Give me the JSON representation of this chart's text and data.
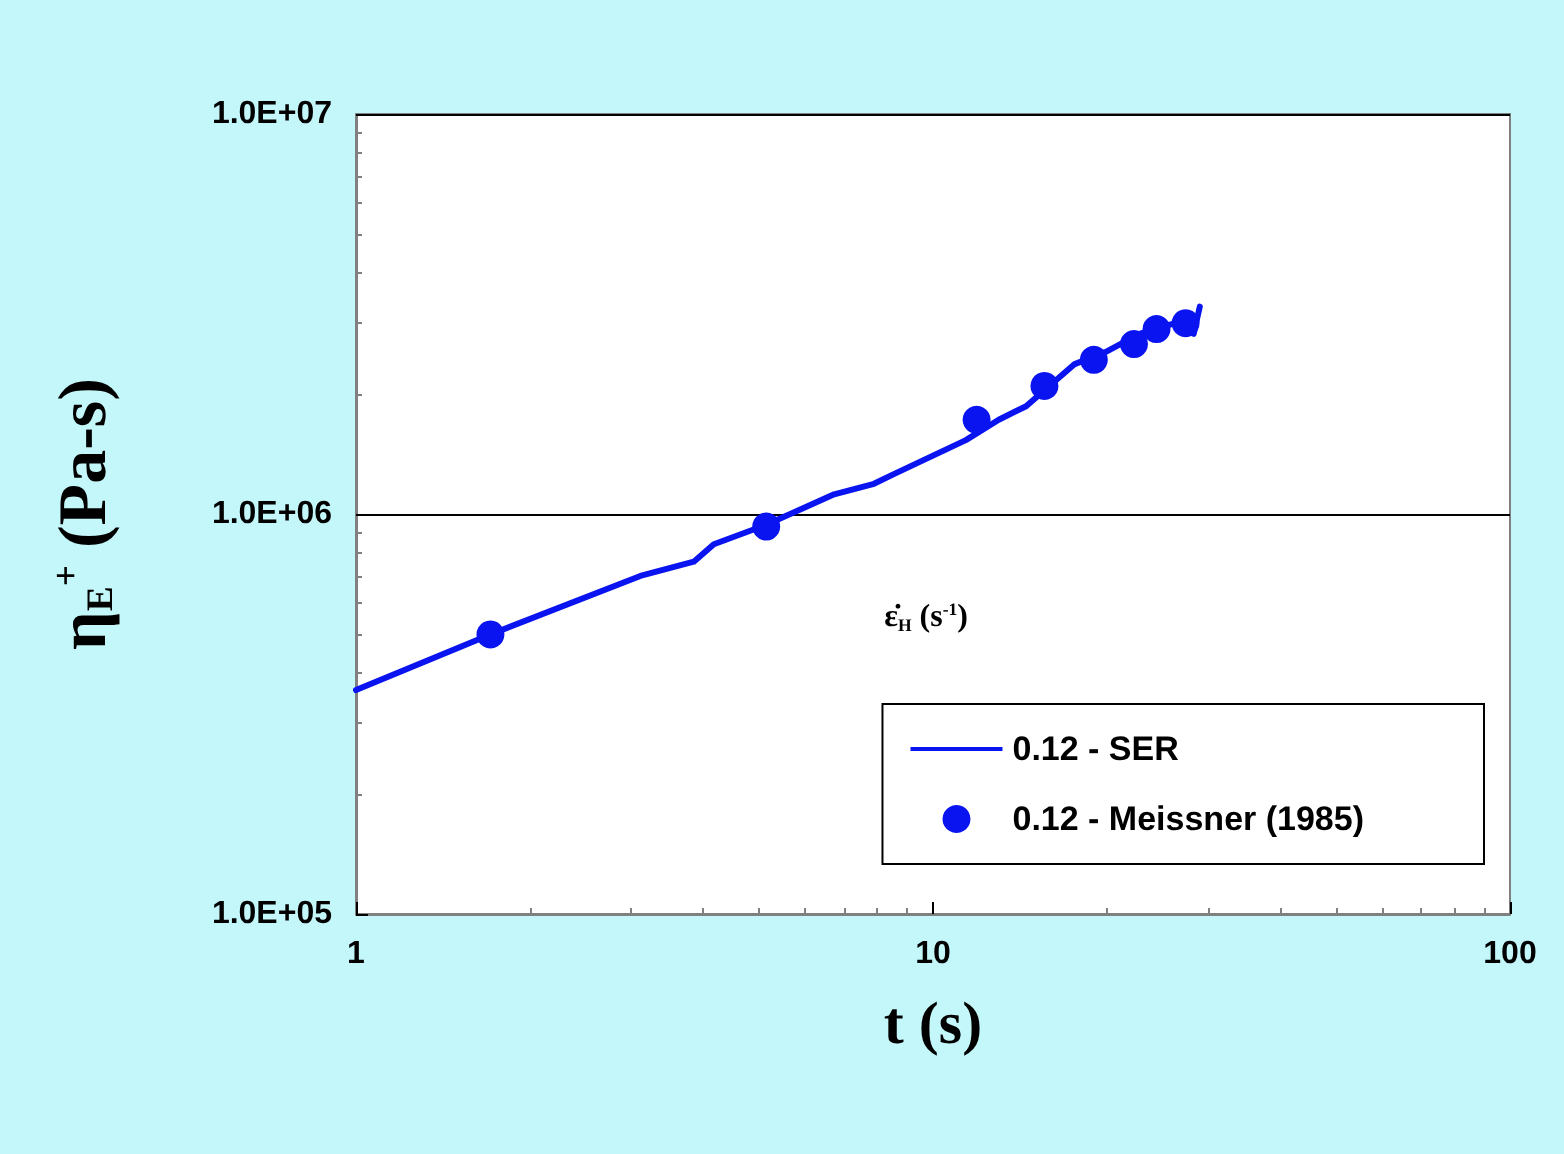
{
  "chart_data": {
    "type": "line",
    "xlabel": "t (s)",
    "ylabel": "η$_{E}$$^{+}$ (Pa-s)",
    "legend_title": "ε̇$_{H}$ (s$^{-1}$)",
    "log": "xy",
    "xlim": [
      1,
      100
    ],
    "xticks": [
      1,
      10,
      100
    ],
    "ylim": [
      100000,
      10000000
    ],
    "yticks": [
      {
        "value": 100000,
        "label": "1.0E+05"
      },
      {
        "value": 1000000,
        "label": "1.0E+06"
      },
      {
        "value": 10000000,
        "label": "1.0E+07"
      }
    ],
    "grid": "y",
    "legend": "bottom right",
    "series": [
      {
        "name": "0.12 - SER",
        "type": "line",
        "color": "#0a14f0",
        "line_style": "solid",
        "marker": "none",
        "x": [
          1,
          1.71,
          3.11,
          3.85,
          4.17,
          5.14,
          6.74,
          7.9,
          8.57,
          11.4,
          13.0,
          14.5,
          17.6,
          19.9,
          22.8,
          26.1,
          28.3,
          29.0
        ],
        "values": [
          363000,
          500000,
          700000,
          760000,
          840000,
          940000,
          1120000,
          1190000,
          1260000,
          1530000,
          1720000,
          1860000,
          2370000,
          2540000,
          2820000,
          2990000,
          2820000,
          3300000
        ]
      },
      {
        "name": "0.12 - Meissner (1985)",
        "type": "scatter",
        "color": "#0a14f0",
        "marker": "circle",
        "x": [
          1.71,
          5.14,
          11.9,
          15.6,
          19.0,
          22.3,
          24.4,
          27.4
        ],
        "values": [
          500000,
          930000,
          1720000,
          2090000,
          2430000,
          2660000,
          2900000,
          3000000
        ]
      }
    ]
  }
}
